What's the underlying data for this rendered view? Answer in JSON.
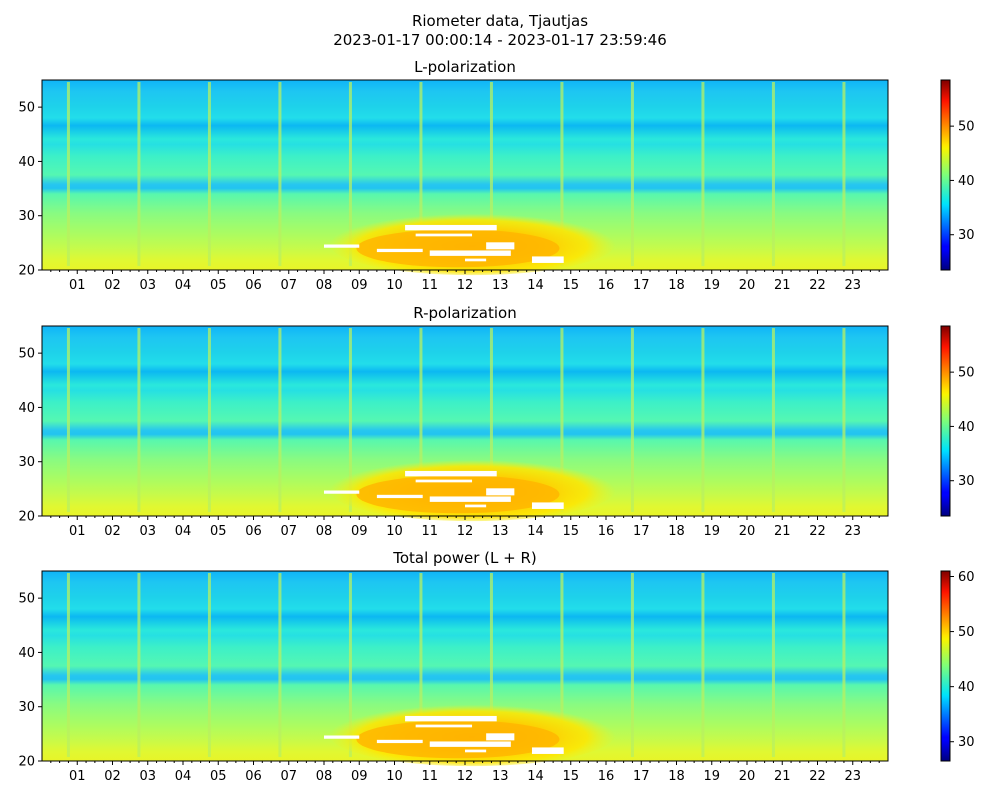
{
  "figure": {
    "title": "Riometer data, Tjautjas",
    "subtitle": "2023-01-17 00:00:14 - 2023-01-17 23:59:46"
  },
  "chart_data": [
    {
      "type": "heatmap",
      "title": "L-polarization",
      "xlabel": "",
      "ylabel": "",
      "x_unit": "hour of day",
      "xlim": [
        0,
        24
      ],
      "ylim": [
        20,
        55
      ],
      "x_ticks": [
        "01",
        "02",
        "03",
        "04",
        "05",
        "06",
        "07",
        "08",
        "09",
        "10",
        "11",
        "12",
        "13",
        "14",
        "15",
        "16",
        "17",
        "18",
        "19",
        "20",
        "21",
        "22",
        "23"
      ],
      "y_ticks": [
        20,
        30,
        40,
        50
      ],
      "colormap": "jet",
      "clim": [
        23.5,
        58.5
      ],
      "colorbar_ticks": [
        30,
        40,
        50
      ]
    },
    {
      "type": "heatmap",
      "title": "R-polarization",
      "xlabel": "",
      "ylabel": "",
      "x_unit": "hour of day",
      "xlim": [
        0,
        24
      ],
      "ylim": [
        20,
        55
      ],
      "x_ticks": [
        "01",
        "02",
        "03",
        "04",
        "05",
        "06",
        "07",
        "08",
        "09",
        "10",
        "11",
        "12",
        "13",
        "14",
        "15",
        "16",
        "17",
        "18",
        "19",
        "20",
        "21",
        "22",
        "23"
      ],
      "y_ticks": [
        20,
        30,
        40,
        50
      ],
      "colormap": "jet",
      "clim": [
        23.5,
        58.5
      ],
      "colorbar_ticks": [
        30,
        40,
        50
      ]
    },
    {
      "type": "heatmap",
      "title": "Total power (L + R)",
      "xlabel": "",
      "ylabel": "",
      "x_unit": "hour of day",
      "xlim": [
        0,
        24
      ],
      "ylim": [
        20,
        55
      ],
      "x_ticks": [
        "01",
        "02",
        "03",
        "04",
        "05",
        "06",
        "07",
        "08",
        "09",
        "10",
        "11",
        "12",
        "13",
        "14",
        "15",
        "16",
        "17",
        "18",
        "19",
        "20",
        "21",
        "22",
        "23"
      ],
      "y_ticks": [
        20,
        30,
        40,
        50
      ],
      "colormap": "jet",
      "clim": [
        26.5,
        61
      ],
      "colorbar_ticks": [
        30,
        40,
        50,
        60
      ]
    }
  ]
}
